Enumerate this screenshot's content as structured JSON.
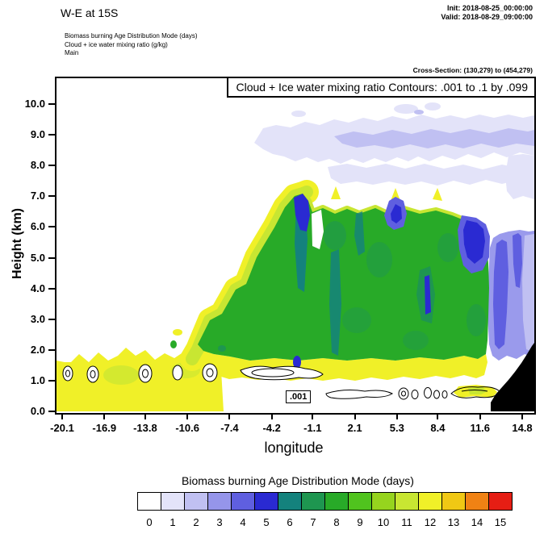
{
  "header": {
    "title": "W-E at 15S",
    "init_label": "Init: 2018-08-25_00:00:00",
    "valid_label": "Valid: 2018-08-29_09:00:00",
    "field_lines": [
      "Biomass burning Age Distribution Mode   (days)",
      "Cloud + ice water mixing ratio   (g/kg)",
      "Main"
    ],
    "cross_section": "Cross-Section: (130,279) to (454,279)"
  },
  "plot": {
    "contour_title": "Cloud + Ice water mixing ratio Contours: .001 to .1 by .099",
    "contour_inline_label": ".001",
    "xlabel": "longitude",
    "ylabel": "Height (km)"
  },
  "chart_data": {
    "type": "heatmap",
    "title": "W-E at 15S vertical cross-section of biomass burning age distribution mode with cloud + ice water mixing ratio contours",
    "xlabel": "longitude",
    "ylabel": "Height (km)",
    "x_tick_labels": [
      "-20.1",
      "-16.9",
      "-13.8",
      "-10.6",
      "-7.4",
      "-4.2",
      "-1.1",
      "2.1",
      "5.3",
      "8.4",
      "11.6",
      "14.8"
    ],
    "y_tick_labels": [
      "0.0",
      "1.0",
      "2.0",
      "3.0",
      "4.0",
      "5.0",
      "6.0",
      "7.0",
      "8.0",
      "9.0",
      "10.0"
    ],
    "xlim": [
      -20.1,
      14.8
    ],
    "ylim": [
      0,
      10.9
    ],
    "fill_field": "Biomass burning Age Distribution Mode (days)",
    "fill_levels": [
      0,
      1,
      2,
      3,
      4,
      5,
      6,
      7,
      8,
      9,
      10,
      11,
      12,
      13,
      14,
      15
    ],
    "contour_field": "Cloud + Ice water mixing ratio (g/kg)",
    "contour_levels": [
      0.001,
      0.1
    ],
    "contour_spec": ".001 to .1 by .099",
    "colorbar": {
      "title": "Biomass burning Age Distribution Mode  (days)",
      "labels": [
        "0",
        "1",
        "2",
        "3",
        "4",
        "5",
        "6",
        "7",
        "8",
        "9",
        "10",
        "11",
        "12",
        "13",
        "14",
        "15"
      ],
      "colors": [
        "#ffffff",
        "#e3e3f9",
        "#c0c0f2",
        "#9595ea",
        "#5f5fe0",
        "#2a2ad2",
        "#14827d",
        "#1e9650",
        "#28aa28",
        "#50c31e",
        "#96d41e",
        "#c8e632",
        "#f0f028",
        "#f0c814",
        "#f08214",
        "#e61e14"
      ]
    },
    "regions": [
      {
        "feature": "aged elevated plume layer",
        "age_days": "1-2",
        "lon_range": [
          -5.0,
          14.8
        ],
        "height_km": [
          8.2,
          10.3
        ]
      },
      {
        "feature": "main smoke plume core",
        "age_days": "8-9",
        "lon_range": [
          -8.5,
          11.8
        ],
        "height_km": [
          1.5,
          7.0
        ]
      },
      {
        "feature": "young boundary-layer smoke",
        "age_days": "11-12",
        "lon_range": [
          -20.1,
          -4.0
        ],
        "height_km": [
          0.0,
          2.0
        ]
      },
      {
        "feature": "yellow/yellow-green fringe on plume northwest edge",
        "age_days": "10-12",
        "lon_range": [
          -10.0,
          -1.0
        ],
        "height_km": [
          2.0,
          7.0
        ]
      },
      {
        "feature": "embedded younger cores and updraft streaks",
        "age_days": "4-7",
        "lon_range": [
          -1.5,
          5.5
        ],
        "height_km": [
          3.0,
          7.0
        ]
      },
      {
        "feature": "dark blue young core at plume top",
        "age_days": "4-5",
        "lon_range": [
          9.5,
          11.6
        ],
        "height_km": [
          4.8,
          6.5
        ]
      },
      {
        "feature": "blue-violet plume east edge",
        "age_days": "2-4",
        "lon_range": [
          10.5,
          14.8
        ],
        "height_km": [
          2.0,
          6.5
        ]
      },
      {
        "feature": "cloud + ice water 0.001 contour cells",
        "age_days": null,
        "lon_range": [
          -20.1,
          11.0
        ],
        "height_km": [
          0.3,
          1.3
        ]
      },
      {
        "feature": "terrain (blacked out)",
        "age_days": null,
        "lon_range": [
          12.2,
          14.8
        ],
        "height_km": [
          0.0,
          2.2
        ]
      }
    ]
  }
}
